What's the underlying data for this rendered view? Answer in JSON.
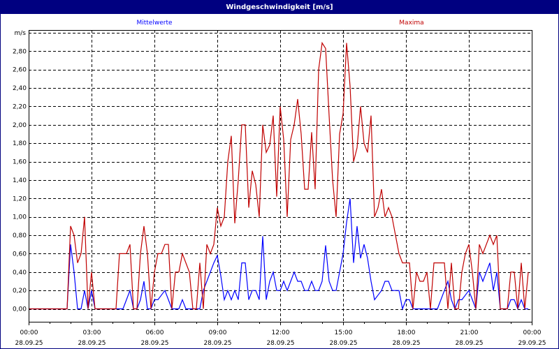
{
  "window": {
    "title": "Windgeschwindigkeit [m/s]"
  },
  "chart_data": {
    "type": "line",
    "title": "Windgeschwindigkeit [m/s]",
    "ylabel": "m/s",
    "ylim": [
      -0.14,
      3.03
    ],
    "yticks": [
      0,
      0.2,
      0.4,
      0.6,
      0.8,
      1.0,
      1.2,
      1.4,
      1.6,
      1.8,
      2.0,
      2.2,
      2.4,
      2.6,
      2.8
    ],
    "ytick_labels": [
      "0,00",
      "0,20",
      "0,40",
      "0,60",
      "0,80",
      "1,00",
      "1,20",
      "1,40",
      "1,60",
      "1,80",
      "2,00",
      "2,20",
      "2,40",
      "2,60",
      "2,80"
    ],
    "xlim": [
      "28.09.25 00:00",
      "29.09.25 00:00"
    ],
    "xticks": [
      {
        "time": "00:00",
        "date": "28.09.25"
      },
      {
        "time": "03:00",
        "date": "28.09.25"
      },
      {
        "time": "06:00",
        "date": "28.09.25"
      },
      {
        "time": "09:00",
        "date": "28.09.25"
      },
      {
        "time": "12:00",
        "date": "28.09.25"
      },
      {
        "time": "15:00",
        "date": "28.09.25"
      },
      {
        "time": "18:00",
        "date": "28.09.25"
      },
      {
        "time": "21:00",
        "date": "28.09.25"
      },
      {
        "time": "00:00",
        "date": "29.09.25"
      }
    ],
    "grid": true,
    "x_interval": "10 min",
    "series": [
      {
        "name": "Mittelwerte",
        "color": "#0000ff",
        "legend_position": "top-left",
        "values": [
          0,
          0,
          0,
          0,
          0,
          0,
          0,
          0,
          0,
          0,
          0,
          0,
          0.7,
          0.4,
          0,
          0,
          0.2,
          0,
          0.2,
          0,
          0,
          0,
          0,
          0,
          0,
          0,
          0,
          0,
          0.1,
          0.2,
          0,
          0,
          0.1,
          0.3,
          0,
          0,
          0.1,
          0.1,
          0.15,
          0.2,
          0.1,
          0,
          0,
          0,
          0.1,
          0,
          0,
          0,
          0,
          0,
          0.2,
          0.3,
          0.4,
          0.5,
          0.58,
          0.36,
          0.1,
          0.2,
          0.1,
          0.2,
          0.1,
          0.5,
          0.5,
          0.1,
          0.2,
          0.2,
          0.1,
          0.79,
          0.1,
          0.3,
          0.4,
          0.2,
          0.2,
          0.3,
          0.2,
          0.3,
          0.4,
          0.3,
          0.3,
          0.2,
          0.2,
          0.3,
          0.2,
          0.2,
          0.3,
          0.69,
          0.3,
          0.2,
          0.2,
          0.4,
          0.6,
          0.94,
          1.2,
          0.5,
          0.9,
          0.55,
          0.7,
          0.55,
          0.3,
          0.1,
          0.15,
          0.2,
          0.3,
          0.3,
          0.2,
          0.2,
          0.2,
          0,
          0.1,
          0.1,
          0,
          0,
          0,
          0,
          0,
          0,
          0,
          0,
          0.1,
          0.2,
          0.3,
          0.1,
          0,
          0.1,
          0.1,
          0.15,
          0.2,
          0.1,
          0,
          0.4,
          0.3,
          0.4,
          0.5,
          0.2,
          0.4,
          0,
          0,
          0,
          0.1,
          0.1,
          0,
          0.1,
          0,
          0
        ]
      },
      {
        "name": "Maxima",
        "color": "#c00000",
        "legend_position": "top-right",
        "values": [
          0,
          0,
          0,
          0,
          0,
          0,
          0,
          0,
          0,
          0,
          0,
          0,
          0.9,
          0.8,
          0.5,
          0.6,
          1.0,
          0,
          0.4,
          0,
          0,
          0,
          0,
          0,
          0,
          0,
          0.6,
          0.6,
          0.6,
          0.7,
          0,
          0,
          0.6,
          0.9,
          0.6,
          0,
          0.4,
          0.6,
          0.6,
          0.7,
          0.7,
          0,
          0.4,
          0.4,
          0.6,
          0.5,
          0.4,
          0,
          0,
          0.5,
          0,
          0.7,
          0.6,
          0.7,
          1.1,
          0.9,
          1.0,
          1.6,
          1.88,
          0.93,
          1.4,
          2.0,
          2.0,
          1.1,
          1.5,
          1.35,
          1.0,
          2.0,
          1.7,
          1.78,
          2.1,
          1.22,
          2.2,
          1.84,
          1.0,
          1.84,
          2.0,
          2.28,
          1.9,
          1.3,
          1.3,
          1.92,
          1.3,
          2.6,
          2.89,
          2.83,
          2.1,
          1.4,
          1.0,
          1.9,
          2.12,
          2.89,
          2.42,
          1.6,
          1.75,
          2.2,
          1.8,
          1.7,
          2.1,
          1.0,
          1.1,
          1.3,
          1.0,
          1.1,
          1.0,
          0.8,
          0.6,
          0.5,
          0.5,
          0.5,
          0,
          0.4,
          0.3,
          0.3,
          0.4,
          0,
          0.5,
          0.5,
          0.5,
          0.5,
          0,
          0.5,
          0,
          0,
          0.4,
          0.6,
          0.7,
          0.4,
          0,
          0.7,
          0.6,
          0.7,
          0.8,
          0.7,
          0.8,
          0,
          0,
          0,
          0.4,
          0.4,
          0,
          0.5,
          0,
          0.4
        ]
      }
    ]
  }
}
